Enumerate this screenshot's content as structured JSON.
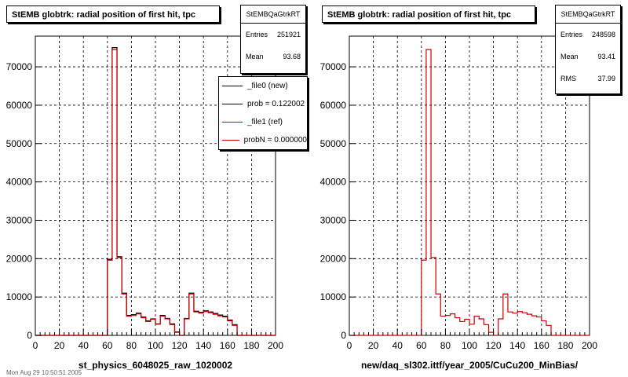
{
  "chart_data": [
    {
      "type": "bar",
      "title": "StEMB globtrk: radial position of first hit, tpc",
      "xlabel": "st_physics_6048025_raw_1020002",
      "ylabel": "",
      "xlim": [
        0,
        200
      ],
      "ylim": [
        0,
        78000
      ],
      "x_ticks": [
        0,
        20,
        40,
        60,
        80,
        100,
        120,
        140,
        160,
        180,
        200
      ],
      "y_ticks": [
        0,
        10000,
        20000,
        30000,
        40000,
        50000,
        60000,
        70000
      ],
      "grid": true,
      "bin_width": 4,
      "bin_edges_start": 0,
      "series": [
        {
          "name": "_file0 (new)",
          "color": "#000000",
          "values": [
            0,
            0,
            0,
            0,
            0,
            0,
            0,
            0,
            0,
            0,
            0,
            0,
            0,
            0,
            0,
            19800,
            75000,
            20500,
            11000,
            5200,
            5400,
            5800,
            4800,
            3800,
            4300,
            3000,
            5200,
            4400,
            3000,
            900,
            0,
            4400,
            11000,
            6300,
            6000,
            6400,
            6100,
            5700,
            5300,
            5000,
            4000,
            2800,
            0,
            0,
            0,
            0,
            0,
            0,
            0,
            0
          ]
        },
        {
          "name": "_file1 (ref)",
          "color": "#cc0000",
          "values": [
            0,
            0,
            0,
            0,
            0,
            0,
            0,
            0,
            0,
            0,
            0,
            0,
            0,
            0,
            0,
            19600,
            74500,
            20300,
            10800,
            5000,
            5200,
            5600,
            4600,
            3600,
            4200,
            2900,
            5000,
            4300,
            2800,
            800,
            0,
            4300,
            10800,
            6100,
            5800,
            6200,
            5900,
            5500,
            5100,
            4800,
            3800,
            2600,
            0,
            0,
            0,
            0,
            0,
            0,
            0,
            0
          ]
        }
      ],
      "stats": {
        "name": "StEMBQaGtrkRT",
        "entries_label": "Entries",
        "entries": "251921",
        "mean_label": "Mean",
        "mean": "93.68"
      },
      "legend": [
        "_file0 (new)",
        "prob = 0.122002",
        "_file1 (ref)",
        "probN = 0.000000"
      ]
    },
    {
      "type": "bar",
      "title": "StEMB globtrk: radial position of first hit, tpc",
      "xlabel": "new/daq_sl302.ittf/year_2005/CuCu200_MinBias/",
      "ylabel": "",
      "xlim": [
        0,
        200
      ],
      "ylim": [
        0,
        78000
      ],
      "x_ticks": [
        0,
        20,
        40,
        60,
        80,
        100,
        120,
        140,
        160,
        180,
        200
      ],
      "y_ticks": [
        0,
        10000,
        20000,
        30000,
        40000,
        50000,
        60000,
        70000
      ],
      "grid": true,
      "bin_width": 4,
      "bin_edges_start": 0,
      "series": [
        {
          "name": "",
          "color": "#cc0000",
          "values": [
            0,
            0,
            0,
            0,
            0,
            0,
            0,
            0,
            0,
            0,
            0,
            0,
            0,
            0,
            0,
            19600,
            74500,
            20300,
            10800,
            5000,
            5200,
            5600,
            4600,
            3600,
            4200,
            2900,
            5000,
            4300,
            2800,
            800,
            0,
            4300,
            10800,
            6100,
            5800,
            6200,
            5900,
            5500,
            5100,
            4800,
            3800,
            2600,
            0,
            0,
            0,
            0,
            0,
            0,
            0,
            0
          ]
        }
      ],
      "stats": {
        "name": "StEMBQaGtrkRT",
        "entries_label": "Entries",
        "entries": "248598",
        "mean_label": "Mean",
        "mean": "93.41",
        "rms_label": "RMS",
        "rms": "37.99"
      }
    }
  ],
  "footer_text": "Mon Aug 29 10:50:51 2005"
}
